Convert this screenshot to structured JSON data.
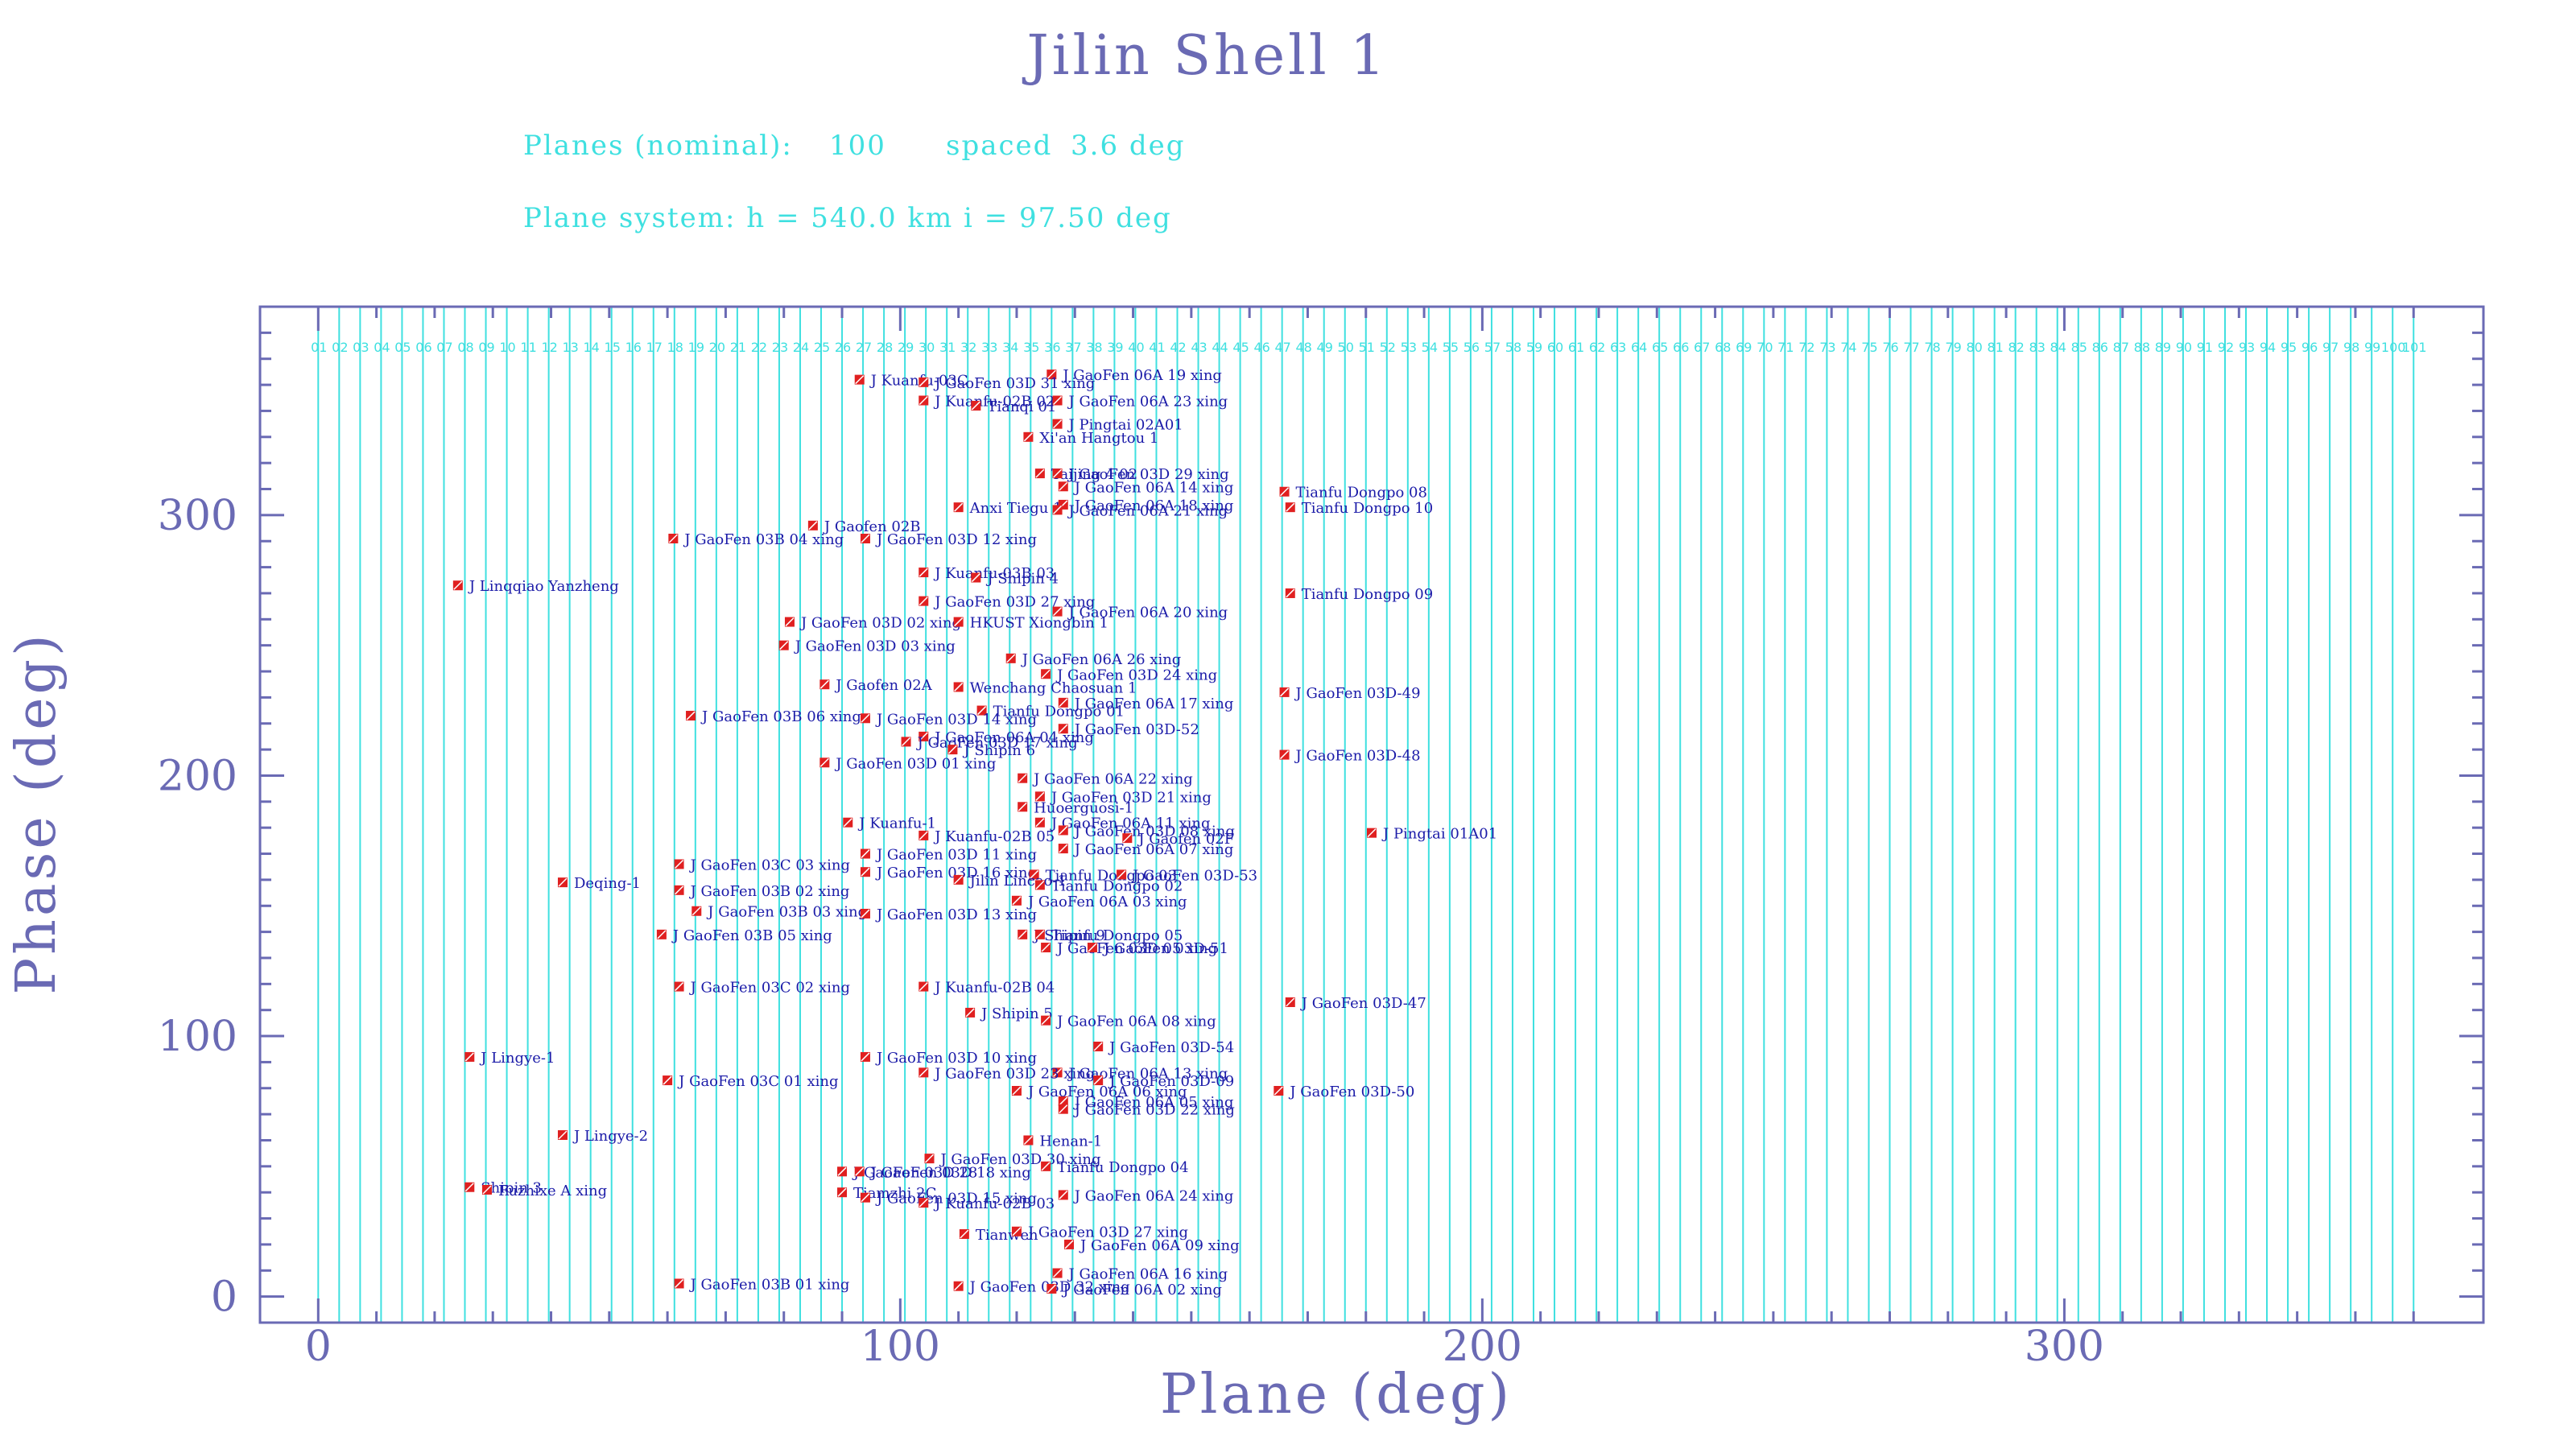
{
  "title": "Jilin Shell 1",
  "info": {
    "planes_label": "Planes (nominal):",
    "planes_value": "100",
    "spaced_label": "spaced",
    "spaced_value": "3.6 deg",
    "system_line": "Plane system: h = 540.0 km  i = 97.50 deg"
  },
  "chart_data": {
    "type": "scatter",
    "title": "Jilin Shell 1",
    "xlabel": "Plane (deg)",
    "ylabel": "Phase (deg)",
    "xlim": [
      -10,
      372
    ],
    "ylim": [
      -10,
      380
    ],
    "xticks": [
      0,
      100,
      200,
      300
    ],
    "yticks": [
      0,
      100,
      200,
      300
    ],
    "grid": "vertical plane lines",
    "planes": {
      "count": 101,
      "spacing_deg": 3.6,
      "labels": [
        "01",
        "02",
        "03",
        "04",
        "05",
        "06",
        "07",
        "08",
        "09",
        "10",
        "11",
        "12",
        "13",
        "14",
        "15",
        "16",
        "17",
        "18",
        "19",
        "20",
        "21",
        "22",
        "23",
        "24",
        "25",
        "26",
        "27",
        "28",
        "29",
        "30",
        "31",
        "32",
        "33",
        "34",
        "35",
        "36",
        "37",
        "38",
        "39",
        "40",
        "41",
        "42",
        "43",
        "44",
        "45",
        "46",
        "47",
        "48",
        "49",
        "50",
        "51",
        "52",
        "53",
        "54",
        "55",
        "56",
        "57",
        "58",
        "59",
        "60",
        "61",
        "62",
        "63",
        "64",
        "65",
        "66",
        "67",
        "68",
        "69",
        "70",
        "71",
        "72",
        "73",
        "74",
        "75",
        "76",
        "77",
        "78",
        "79",
        "80",
        "81",
        "82",
        "83",
        "84",
        "85",
        "86",
        "87",
        "88",
        "89",
        "90",
        "91",
        "92",
        "93",
        "94",
        "95",
        "96",
        "97",
        "98",
        "99",
        "100",
        "101"
      ]
    },
    "points": [
      {
        "x": 126,
        "y": 354,
        "label": "J GaoFen 06A 19 xing"
      },
      {
        "x": 93,
        "y": 352,
        "label": "J Kuanfu-03C"
      },
      {
        "x": 104,
        "y": 351,
        "label": "J GaoFen 03D 31 xing"
      },
      {
        "x": 104,
        "y": 344,
        "label": "J Kuanfu-02B 02"
      },
      {
        "x": 113,
        "y": 342,
        "label": "Tianqi 01"
      },
      {
        "x": 127,
        "y": 344,
        "label": "J GaoFen 06A 23 xing"
      },
      {
        "x": 127,
        "y": 335,
        "label": "J Pingtai 02A01"
      },
      {
        "x": 122,
        "y": 330,
        "label": "Xi'an Hangtou 1"
      },
      {
        "x": 124,
        "y": 316,
        "label": "Taijing 4 02"
      },
      {
        "x": 127,
        "y": 316,
        "label": "J GaoFen 03D 29 xing"
      },
      {
        "x": 128,
        "y": 311,
        "label": "J GaoFen 06A 14 xing"
      },
      {
        "x": 166,
        "y": 309,
        "label": "Tianfu Dongpo 08"
      },
      {
        "x": 110,
        "y": 303,
        "label": "Anxi Tiegu 1"
      },
      {
        "x": 128,
        "y": 304,
        "label": "J GaoFen 06A 18 xing"
      },
      {
        "x": 127,
        "y": 302,
        "label": "J GaoFen 06A 21 xing"
      },
      {
        "x": 167,
        "y": 303,
        "label": "Tianfu Dongpo 10"
      },
      {
        "x": 85,
        "y": 296,
        "label": "J Gaofen 02B"
      },
      {
        "x": 61,
        "y": 291,
        "label": "J GaoFen 03B 04 xing"
      },
      {
        "x": 94,
        "y": 291,
        "label": "J GaoFen 03D 12 xing"
      },
      {
        "x": 104,
        "y": 278,
        "label": "J Kuanfu-03B 03"
      },
      {
        "x": 113,
        "y": 276,
        "label": "J Shipin 4"
      },
      {
        "x": 24,
        "y": 273,
        "label": "J Linqqiao Yanzheng"
      },
      {
        "x": 167,
        "y": 270,
        "label": "Tianfu Dongpo 09"
      },
      {
        "x": 104,
        "y": 267,
        "label": "J GaoFen 03D 27 xing"
      },
      {
        "x": 127,
        "y": 263,
        "label": "J GaoFen 06A 20 xing"
      },
      {
        "x": 81,
        "y": 259,
        "label": "J GaoFen 03D 02 xing"
      },
      {
        "x": 110,
        "y": 259,
        "label": "HKUST Xiongbin 1"
      },
      {
        "x": 80,
        "y": 250,
        "label": "J GaoFen 03D 03 xing"
      },
      {
        "x": 119,
        "y": 245,
        "label": "J GaoFen 06A 26 xing"
      },
      {
        "x": 125,
        "y": 239,
        "label": "J GaoFen 03D 24 xing"
      },
      {
        "x": 87,
        "y": 235,
        "label": "J Gaofen 02A"
      },
      {
        "x": 110,
        "y": 234,
        "label": "Wenchang Chaosuan 1"
      },
      {
        "x": 166,
        "y": 232,
        "label": "J GaoFen 03D-49"
      },
      {
        "x": 128,
        "y": 228,
        "label": "J GaoFen 06A 17 xing"
      },
      {
        "x": 114,
        "y": 225,
        "label": "Tianfu Dongpo 01"
      },
      {
        "x": 64,
        "y": 223,
        "label": "J GaoFen 03B 06 xing"
      },
      {
        "x": 94,
        "y": 222,
        "label": "J GaoFen 03D 14 xing"
      },
      {
        "x": 128,
        "y": 218,
        "label": "J GaoFen 03D-52"
      },
      {
        "x": 104,
        "y": 215,
        "label": "J GaoFen 06A 04 xing"
      },
      {
        "x": 101,
        "y": 213,
        "label": "J GaoFen 03D 17 xing"
      },
      {
        "x": 109,
        "y": 210,
        "label": "J Shipin 6"
      },
      {
        "x": 166,
        "y": 208,
        "label": "J GaoFen 03D-48"
      },
      {
        "x": 87,
        "y": 205,
        "label": "J GaoFen 03D 01 xing"
      },
      {
        "x": 121,
        "y": 199,
        "label": "J GaoFen 06A 22 xing"
      },
      {
        "x": 124,
        "y": 192,
        "label": "J GaoFen 03D 21 xing"
      },
      {
        "x": 121,
        "y": 188,
        "label": "Huoerguosi-1"
      },
      {
        "x": 91,
        "y": 182,
        "label": "J Kuanfu-1"
      },
      {
        "x": 124,
        "y": 182,
        "label": "J GaoFen 06A 11 xing"
      },
      {
        "x": 128,
        "y": 179,
        "label": "J GaoFen 03D 08 xing"
      },
      {
        "x": 104,
        "y": 177,
        "label": "J Kuanfu-02B 05"
      },
      {
        "x": 139,
        "y": 176,
        "label": "J Gaofen 02F"
      },
      {
        "x": 181,
        "y": 178,
        "label": "J Pingtai 01A01"
      },
      {
        "x": 128,
        "y": 172,
        "label": "J GaoFen 06A 07 xing"
      },
      {
        "x": 94,
        "y": 170,
        "label": "J GaoFen 03D 11 xing"
      },
      {
        "x": 62,
        "y": 166,
        "label": "J GaoFen 03C 03 xing"
      },
      {
        "x": 94,
        "y": 163,
        "label": "J GaoFen 03D 16 xing"
      },
      {
        "x": 123,
        "y": 162,
        "label": "Tianfu Dongpo 03"
      },
      {
        "x": 138,
        "y": 162,
        "label": "J GaoFen 03D-53"
      },
      {
        "x": 110,
        "y": 160,
        "label": "Jilin Lincao-1"
      },
      {
        "x": 42,
        "y": 159,
        "label": "Deqing-1"
      },
      {
        "x": 124,
        "y": 158,
        "label": "Tianfu Dongpo 02"
      },
      {
        "x": 62,
        "y": 156,
        "label": "J GaoFen 03B 02 xing"
      },
      {
        "x": 120,
        "y": 152,
        "label": "J GaoFen 06A 03 xing"
      },
      {
        "x": 65,
        "y": 148,
        "label": "J GaoFen 03B 03 xing"
      },
      {
        "x": 94,
        "y": 147,
        "label": "J GaoFen 03D 13 xing"
      },
      {
        "x": 121,
        "y": 139,
        "label": "J Shipin 9"
      },
      {
        "x": 124,
        "y": 139,
        "label": "Tianfu Dongpo 05"
      },
      {
        "x": 59,
        "y": 139,
        "label": "J GaoFen 03B 05 xing"
      },
      {
        "x": 125,
        "y": 134,
        "label": "J GaoFen 03D 05 xing"
      },
      {
        "x": 133,
        "y": 134,
        "label": "J GaoFen 03D-51"
      },
      {
        "x": 62,
        "y": 119,
        "label": "J GaoFen 03C 02 xing"
      },
      {
        "x": 104,
        "y": 119,
        "label": "J Kuanfu-02B 04"
      },
      {
        "x": 167,
        "y": 113,
        "label": "J GaoFen 03D-47"
      },
      {
        "x": 112,
        "y": 109,
        "label": "J Shipin 5"
      },
      {
        "x": 125,
        "y": 106,
        "label": "J GaoFen 06A 08 xing"
      },
      {
        "x": 134,
        "y": 96,
        "label": "J GaoFen 03D-54"
      },
      {
        "x": 26,
        "y": 92,
        "label": "J Lingye-1"
      },
      {
        "x": 94,
        "y": 92,
        "label": "J GaoFen 03D 10 xing"
      },
      {
        "x": 127,
        "y": 86,
        "label": "J GaoFen 06A 13 xing"
      },
      {
        "x": 104,
        "y": 86,
        "label": "J GaoFen 03D 23 xing"
      },
      {
        "x": 60,
        "y": 83,
        "label": "J GaoFen 03C 01 xing"
      },
      {
        "x": 134,
        "y": 83,
        "label": "J GaoFen 03D-09"
      },
      {
        "x": 165,
        "y": 79,
        "label": "J GaoFen 03D-50"
      },
      {
        "x": 120,
        "y": 79,
        "label": "J GaoFen 06A 06 xing"
      },
      {
        "x": 128,
        "y": 75,
        "label": "J GaoFen 06A 05 xing"
      },
      {
        "x": 128,
        "y": 72,
        "label": "J GaoFen 03D 22 xing"
      },
      {
        "x": 42,
        "y": 62,
        "label": "J Lingye-2"
      },
      {
        "x": 122,
        "y": 60,
        "label": "Henan-1"
      },
      {
        "x": 105,
        "y": 53,
        "label": "J GaoFen 03D 30 xing"
      },
      {
        "x": 125,
        "y": 50,
        "label": "Tianfu Dongpo 04"
      },
      {
        "x": 90,
        "y": 48,
        "label": "J GaoFen 03D 28"
      },
      {
        "x": 93,
        "y": 48,
        "label": "J GaoFen 03D 18 xing"
      },
      {
        "x": 26,
        "y": 42,
        "label": "Shipin 3"
      },
      {
        "x": 29,
        "y": 41,
        "label": "Fuzhixe A xing"
      },
      {
        "x": 90,
        "y": 40,
        "label": "Tiamzhi 2C"
      },
      {
        "x": 128,
        "y": 39,
        "label": "J GaoFen 06A 24 xing"
      },
      {
        "x": 94,
        "y": 38,
        "label": "J GaoFen 03D 15 xing"
      },
      {
        "x": 104,
        "y": 36,
        "label": "J Kuanfu-02B 03"
      },
      {
        "x": 111,
        "y": 24,
        "label": "Tianwen"
      },
      {
        "x": 120,
        "y": 25,
        "label": "J GaoFen 03D 27 xing"
      },
      {
        "x": 129,
        "y": 20,
        "label": "J GaoFen 06A 09 xing"
      },
      {
        "x": 127,
        "y": 9,
        "label": "J GaoFen 06A 16 xing"
      },
      {
        "x": 62,
        "y": 5,
        "label": "J GaoFen 03B 01 xing"
      },
      {
        "x": 110,
        "y": 4,
        "label": "J GaoFen 03D 32 xing"
      },
      {
        "x": 126,
        "y": 3,
        "label": "J GaoFen 06A 02 xing"
      }
    ]
  }
}
